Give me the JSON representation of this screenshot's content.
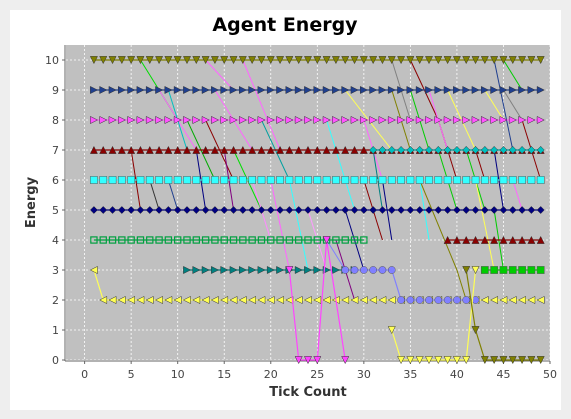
{
  "chart_data": {
    "type": "line",
    "title": "Agent Energy",
    "xlabel": "Tick Count",
    "ylabel": "Energy",
    "xlim": [
      -2,
      50
    ],
    "ylim": [
      0,
      10.5
    ],
    "xticks": [
      0,
      5,
      10,
      15,
      20,
      25,
      30,
      35,
      40,
      45,
      50
    ],
    "yticks": [
      0,
      1,
      2,
      3,
      4,
      5,
      6,
      7,
      8,
      9,
      10
    ],
    "grid": true,
    "legend": "none",
    "background_color": "#c0c0c0",
    "series": [
      {
        "color": "#808000",
        "marker": "triangle-down",
        "points": [
          [
            1,
            10
          ],
          [
            49,
            10
          ]
        ]
      },
      {
        "color": "#1f3f8f",
        "marker": "triangle-right",
        "points": [
          [
            1,
            9
          ],
          [
            49,
            9
          ]
        ]
      },
      {
        "color": "#008080",
        "marker": "triangle-right",
        "points": [
          [
            11,
            3
          ],
          [
            29,
            3
          ]
        ]
      },
      {
        "color": "#ff55ff",
        "marker": "triangle-right",
        "points": [
          [
            1,
            8
          ],
          [
            49,
            8
          ]
        ]
      },
      {
        "color": "#8b0000",
        "marker": "triangle-up",
        "points": [
          [
            1,
            7
          ],
          [
            49,
            7
          ]
        ]
      },
      {
        "color": "#00bfbf",
        "marker": "diamond",
        "points": [
          [
            31,
            7
          ],
          [
            49,
            7
          ]
        ]
      },
      {
        "color": "#33ffff",
        "marker": "square",
        "points": [
          [
            1,
            6
          ],
          [
            49,
            6
          ]
        ]
      },
      {
        "color": "#000080",
        "marker": "diamond",
        "points": [
          [
            1,
            5
          ],
          [
            49,
            5
          ]
        ]
      },
      {
        "color": "#00a040",
        "marker": "square-open",
        "points": [
          [
            1,
            4
          ],
          [
            30,
            4
          ]
        ]
      },
      {
        "color": "#8b0000",
        "marker": "triangle-up",
        "points": [
          [
            39,
            4
          ],
          [
            49,
            4
          ]
        ]
      },
      {
        "color": "#00cc00",
        "marker": "square",
        "points": [
          [
            43,
            3
          ],
          [
            49,
            3
          ]
        ]
      },
      {
        "color": "#ffff55",
        "marker": "triangle-left",
        "points": [
          [
            1,
            3
          ],
          [
            2,
            2
          ],
          [
            49,
            2
          ]
        ]
      },
      {
        "color": "#8080ff",
        "marker": "circle",
        "points": [
          [
            28,
            3
          ],
          [
            33,
            3
          ],
          [
            34,
            2
          ],
          [
            42,
            2
          ]
        ]
      },
      {
        "color": "#ff44ff",
        "marker": "triangle-down",
        "points": [
          [
            22,
            3
          ],
          [
            23,
            0
          ],
          [
            25,
            0
          ],
          [
            26,
            4
          ],
          [
            28,
            0
          ]
        ]
      },
      {
        "color": "#ffff55",
        "marker": "triangle-down",
        "points": [
          [
            33,
            1
          ],
          [
            34,
            0
          ],
          [
            41,
            0
          ],
          [
            42,
            3
          ]
        ]
      },
      {
        "color": "#808000",
        "marker": "triangle-down",
        "points": [
          [
            41,
            3
          ],
          [
            42,
            1
          ],
          [
            43,
            0
          ],
          [
            49,
            0
          ]
        ]
      }
    ],
    "transitions": [
      {
        "color": "#00dd00",
        "points": [
          [
            6,
            10
          ],
          [
            10,
            8
          ]
        ]
      },
      {
        "color": "#ff66ff",
        "points": [
          [
            8,
            9
          ],
          [
            12,
            7
          ]
        ]
      },
      {
        "color": "#00bfbf",
        "points": [
          [
            9,
            9
          ],
          [
            11,
            7
          ]
        ]
      },
      {
        "color": "#00aa00",
        "points": [
          [
            11,
            8
          ],
          [
            14,
            6
          ]
        ]
      },
      {
        "color": "#000080",
        "points": [
          [
            12,
            7
          ],
          [
            13,
            5
          ]
        ]
      },
      {
        "color": "#8b0000",
        "points": [
          [
            13,
            8
          ],
          [
            16,
            6
          ]
        ]
      },
      {
        "color": "#ff66ff",
        "points": [
          [
            13,
            10
          ],
          [
            16,
            9
          ]
        ]
      },
      {
        "color": "#ff66ff",
        "points": [
          [
            14,
            9
          ],
          [
            18,
            7
          ]
        ]
      },
      {
        "color": "#800080",
        "points": [
          [
            15,
            7
          ],
          [
            16,
            5
          ]
        ]
      },
      {
        "color": "#00dd00",
        "points": [
          [
            16,
            7
          ],
          [
            19,
            5
          ]
        ]
      },
      {
        "color": "#1f3f8f",
        "points": [
          [
            9,
            6
          ],
          [
            10,
            5
          ]
        ]
      },
      {
        "color": "#8b0000",
        "points": [
          [
            5,
            7
          ],
          [
            6,
            5
          ]
        ]
      },
      {
        "color": "#333333",
        "points": [
          [
            7,
            6
          ],
          [
            8,
            5
          ]
        ]
      },
      {
        "color": "#ff88ff",
        "points": [
          [
            18,
            6
          ],
          [
            20,
            4
          ]
        ]
      },
      {
        "color": "#ff66ff",
        "points": [
          [
            20,
            6
          ],
          [
            22,
            3
          ]
        ]
      },
      {
        "color": "#ff66ff",
        "points": [
          [
            17,
            10
          ],
          [
            21,
            7
          ]
        ]
      },
      {
        "color": "#00a0a0",
        "points": [
          [
            19,
            8
          ],
          [
            22,
            6
          ]
        ]
      },
      {
        "color": "#33ffff",
        "points": [
          [
            22,
            6
          ],
          [
            24,
            3
          ]
        ]
      },
      {
        "color": "#33ffff",
        "points": [
          [
            26,
            8
          ],
          [
            29,
            5
          ]
        ]
      },
      {
        "color": "#ff99ff",
        "points": [
          [
            24,
            5
          ],
          [
            26,
            3
          ]
        ]
      },
      {
        "color": "#800080",
        "points": [
          [
            27,
            4
          ],
          [
            29,
            2
          ]
        ]
      },
      {
        "color": "#000080",
        "points": [
          [
            28,
            5
          ],
          [
            30,
            3
          ]
        ]
      },
      {
        "color": "#8080ff",
        "points": [
          [
            26,
            4
          ],
          [
            28,
            3
          ]
        ]
      },
      {
        "color": "#ffff55",
        "points": [
          [
            28,
            9
          ],
          [
            33,
            7
          ]
        ]
      },
      {
        "color": "#ff66ff",
        "points": [
          [
            30,
            8
          ],
          [
            32,
            6
          ]
        ]
      },
      {
        "color": "#008080",
        "points": [
          [
            31,
            7
          ],
          [
            32,
            5
          ]
        ]
      },
      {
        "color": "#000080",
        "points": [
          [
            32,
            6
          ],
          [
            33,
            4
          ]
        ]
      },
      {
        "color": "#808000",
        "points": [
          [
            33,
            9
          ],
          [
            35,
            7
          ]
        ]
      },
      {
        "color": "#808080",
        "points": [
          [
            33,
            10
          ],
          [
            35,
            8
          ]
        ]
      },
      {
        "color": "#00cc00",
        "points": [
          [
            35,
            9
          ],
          [
            37,
            7
          ]
        ]
      },
      {
        "color": "#8b0000",
        "points": [
          [
            35,
            10
          ],
          [
            38,
            8
          ]
        ]
      },
      {
        "color": "#8b0000",
        "points": [
          [
            38,
            8
          ],
          [
            40,
            6
          ]
        ]
      },
      {
        "color": "#ff66ff",
        "points": [
          [
            37,
            9
          ],
          [
            39,
            7
          ]
        ]
      },
      {
        "color": "#33ffff",
        "points": [
          [
            36,
            6
          ],
          [
            37,
            4
          ]
        ]
      },
      {
        "color": "#00cc00",
        "points": [
          [
            38,
            7
          ],
          [
            40,
            5
          ]
        ]
      },
      {
        "color": "#8b0000",
        "points": [
          [
            30,
            6
          ],
          [
            32,
            4
          ]
        ]
      },
      {
        "color": "#ffff55",
        "points": [
          [
            39,
            9
          ],
          [
            42,
            7
          ]
        ]
      },
      {
        "color": "#00cc00",
        "points": [
          [
            41,
            7
          ],
          [
            43,
            5
          ]
        ]
      },
      {
        "color": "#8b0000",
        "points": [
          [
            42,
            7
          ],
          [
            43,
            6
          ]
        ]
      },
      {
        "color": "#000080",
        "points": [
          [
            44,
            7
          ],
          [
            45,
            5
          ]
        ]
      },
      {
        "color": "#1f3f8f",
        "points": [
          [
            44,
            10
          ],
          [
            46,
            7
          ]
        ]
      },
      {
        "color": "#808080",
        "points": [
          [
            45,
            9
          ],
          [
            47,
            8
          ]
        ]
      },
      {
        "color": "#8b0000",
        "points": [
          [
            47,
            8
          ],
          [
            49,
            6
          ]
        ]
      },
      {
        "color": "#ffff55",
        "points": [
          [
            42,
            6
          ],
          [
            44,
            3
          ]
        ]
      },
      {
        "color": "#00cc00",
        "points": [
          [
            44,
            5
          ],
          [
            45,
            3
          ]
        ]
      },
      {
        "color": "#00cc00",
        "points": [
          [
            45,
            10
          ],
          [
            47,
            9
          ]
        ]
      },
      {
        "color": "#808000",
        "points": [
          [
            36,
            6
          ],
          [
            40,
            3
          ]
        ]
      },
      {
        "color": "#808000",
        "points": [
          [
            40,
            3
          ],
          [
            41,
            2
          ]
        ]
      },
      {
        "color": "#ffff55",
        "points": [
          [
            43,
            9
          ],
          [
            45,
            8
          ]
        ]
      },
      {
        "color": "#ff66ff",
        "points": [
          [
            46,
            6
          ],
          [
            47,
            5
          ]
        ]
      }
    ]
  }
}
